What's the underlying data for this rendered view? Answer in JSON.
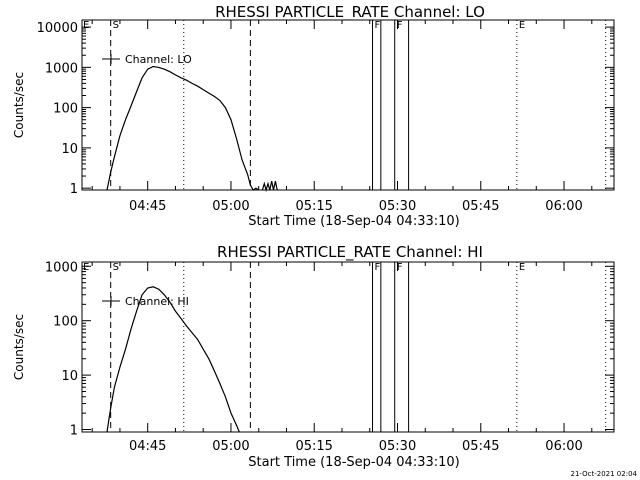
{
  "footer_timestamp": "21-Oct-2021 02:04",
  "chart_data": [
    {
      "type": "line",
      "title": "RHESSI PARTICLE_RATE Channel: LO",
      "xlabel": "Start Time (18-Sep-04 04:33:10)",
      "ylabel": "Counts/sec",
      "y_scale": "log",
      "ylim": [
        0.9,
        15000
      ],
      "xlim": [
        "04:33:10",
        "06:09:00"
      ],
      "x_ticks": [
        "04:45",
        "05:00",
        "05:15",
        "05:30",
        "05:45",
        "06:00"
      ],
      "y_ticks": [
        "1",
        "10",
        "100",
        "1000",
        "10000"
      ],
      "legend": {
        "label": "Channel: LO",
        "placement": "top-left"
      },
      "markers": [
        {
          "label": "S",
          "time": "04:38:20",
          "style": "dashed"
        },
        {
          "label": "",
          "time": "04:51:30",
          "style": "dotted"
        },
        {
          "label": "",
          "time": "05:03:30",
          "style": "dashed"
        },
        {
          "label": "F",
          "time": "05:25:30",
          "style": "solid"
        },
        {
          "label": "",
          "time": "05:27:00",
          "style": "solid"
        },
        {
          "label": "F",
          "time": "05:29:30",
          "style": "solid"
        },
        {
          "label": "",
          "time": "05:32:00",
          "style": "solid"
        },
        {
          "label": "E",
          "time": "05:51:30",
          "style": "dotted"
        },
        {
          "label": "",
          "time": "06:07:30",
          "style": "dotted"
        }
      ],
      "corner_labels": [
        {
          "label": "E",
          "time": "04:33:10"
        }
      ],
      "series": [
        {
          "x": [
            "04:37:40",
            "04:38:20",
            "04:39:00",
            "04:40:00",
            "04:41:00",
            "04:42:00",
            "04:43:00",
            "04:44:00",
            "04:45:00",
            "04:46:00",
            "04:47:00",
            "04:48:00",
            "04:49:00",
            "04:50:00",
            "04:51:00",
            "04:52:00",
            "04:53:00",
            "04:54:00",
            "04:55:00",
            "04:56:00",
            "04:57:00",
            "04:58:00",
            "04:59:00",
            "05:00:00",
            "05:01:00",
            "05:02:00",
            "05:03:00",
            "05:03:30",
            "05:04:00",
            "05:04:30",
            "05:05:00"
          ],
          "y": [
            0.9,
            2.5,
            6,
            20,
            50,
            110,
            250,
            550,
            900,
            1050,
            1000,
            900,
            780,
            650,
            550,
            480,
            400,
            340,
            280,
            230,
            190,
            150,
            100,
            50,
            17,
            5,
            2.2,
            1.2,
            0.9,
            1.0,
            0.9
          ]
        },
        {
          "x": [
            "05:05:40",
            "05:06:00",
            "05:06:20",
            "05:06:40",
            "05:07:00",
            "05:07:20",
            "05:07:40",
            "05:08:00",
            "05:08:20"
          ],
          "y": [
            0.9,
            1.3,
            0.9,
            1.3,
            0.9,
            1.5,
            0.9,
            1.5,
            0.9
          ]
        }
      ]
    },
    {
      "type": "line",
      "title": "RHESSI PARTICLE_RATE Channel: HI",
      "xlabel": "Start Time (18-Sep-04 04:33:10)",
      "ylabel": "Counts/sec",
      "y_scale": "log",
      "ylim": [
        0.9,
        1200
      ],
      "xlim": [
        "04:33:10",
        "06:09:00"
      ],
      "x_ticks": [
        "04:45",
        "05:00",
        "05:15",
        "05:30",
        "05:45",
        "06:00"
      ],
      "y_ticks": [
        "1",
        "10",
        "100",
        "1000"
      ],
      "legend": {
        "label": "Channel: HI",
        "placement": "top-left"
      },
      "markers": [
        {
          "label": "S",
          "time": "04:38:20",
          "style": "dashed"
        },
        {
          "label": "",
          "time": "04:51:30",
          "style": "dotted"
        },
        {
          "label": "",
          "time": "05:03:30",
          "style": "dashed"
        },
        {
          "label": "F",
          "time": "05:25:30",
          "style": "solid"
        },
        {
          "label": "",
          "time": "05:27:00",
          "style": "solid"
        },
        {
          "label": "F",
          "time": "05:29:30",
          "style": "solid"
        },
        {
          "label": "",
          "time": "05:32:00",
          "style": "solid"
        },
        {
          "label": "E",
          "time": "05:51:30",
          "style": "dotted"
        },
        {
          "label": "",
          "time": "06:07:30",
          "style": "dotted"
        }
      ],
      "corner_labels": [
        {
          "label": "E",
          "time": "04:33:10"
        }
      ],
      "series": [
        {
          "x": [
            "04:37:40",
            "04:38:20",
            "04:39:00",
            "04:40:00",
            "04:41:00",
            "04:42:00",
            "04:43:00",
            "04:44:00",
            "04:45:00",
            "04:46:00",
            "04:47:00",
            "04:48:00",
            "04:49:00",
            "04:50:00",
            "04:51:00",
            "04:52:00",
            "04:53:00",
            "04:54:00",
            "04:55:00",
            "04:56:00",
            "04:57:00",
            "04:58:00",
            "04:59:00",
            "05:00:00",
            "05:01:00",
            "05:01:30"
          ],
          "y": [
            0.9,
            2.5,
            6,
            14,
            30,
            70,
            150,
            300,
            400,
            420,
            380,
            300,
            220,
            150,
            110,
            80,
            60,
            45,
            30,
            20,
            12,
            7,
            4,
            2,
            1.2,
            0.9
          ]
        }
      ]
    }
  ]
}
